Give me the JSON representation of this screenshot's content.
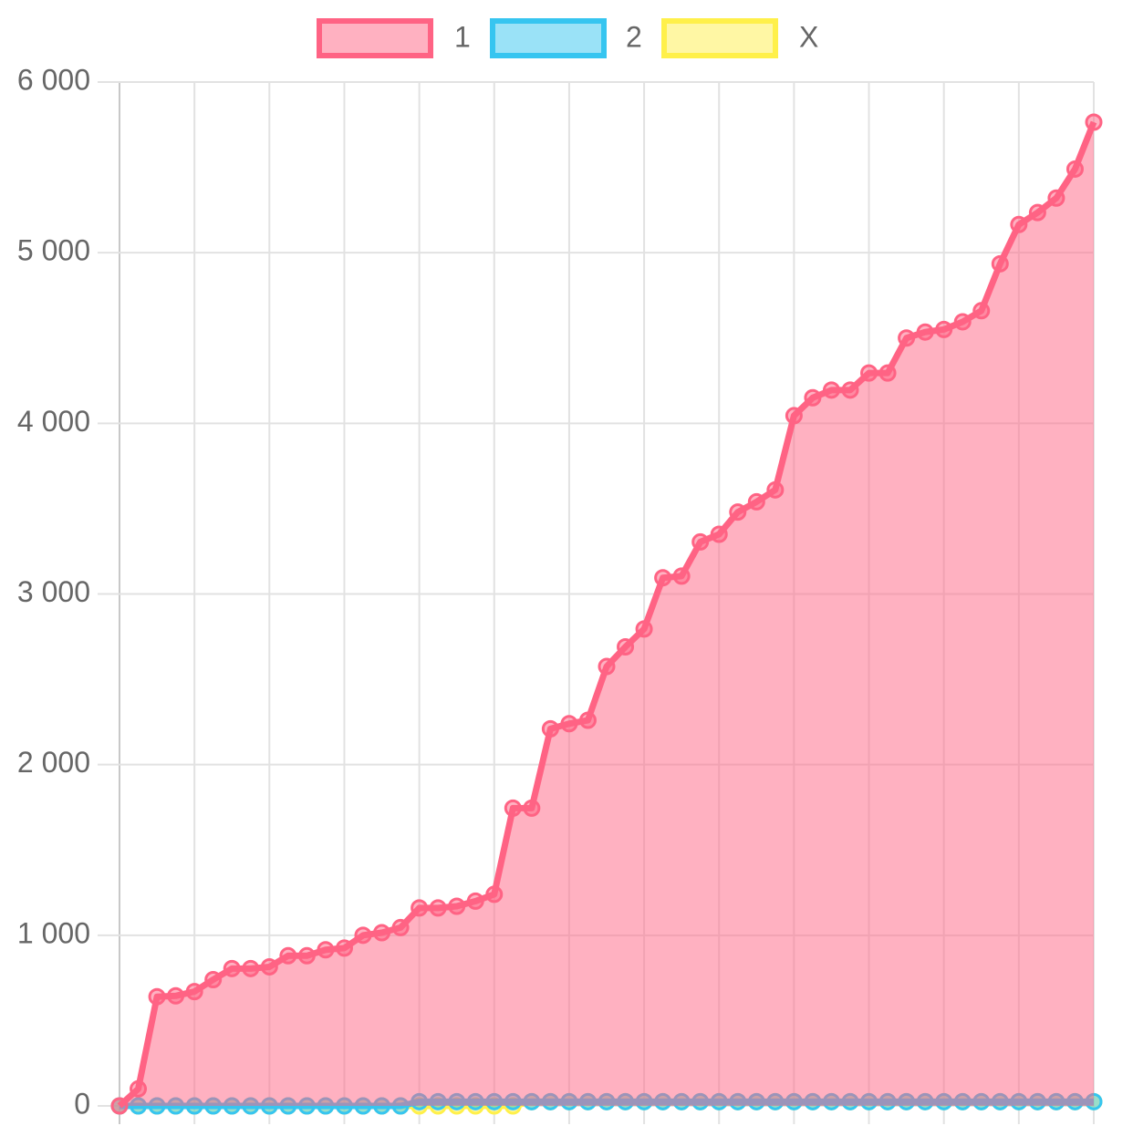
{
  "chart_data": {
    "type": "line",
    "categories": [
      null,
      null,
      null,
      null,
      null,
      null,
      null,
      null,
      null,
      null,
      null,
      null,
      null,
      null,
      null,
      null,
      null,
      null,
      null,
      null,
      null,
      null,
      null,
      null,
      null,
      null,
      null,
      null,
      null,
      null,
      null,
      null,
      null,
      null,
      null,
      null,
      null,
      null,
      null,
      null,
      null,
      null,
      null,
      null,
      null,
      null,
      null,
      null,
      null,
      null,
      null,
      null,
      null
    ],
    "series": [
      {
        "name": "1",
        "color": "#ff6384",
        "values": [
          0,
          100,
          640,
          645,
          670,
          740,
          805,
          805,
          815,
          880,
          880,
          915,
          925,
          1000,
          1015,
          1045,
          1160,
          1160,
          1170,
          1200,
          1240,
          1745,
          1745,
          2210,
          2240,
          2260,
          2575,
          2690,
          2795,
          3095,
          3105,
          3305,
          3350,
          3480,
          3540,
          3610,
          4045,
          4150,
          4195,
          4195,
          4295,
          4295,
          4500,
          4535,
          4550,
          4595,
          4660,
          4935,
          5165,
          5235,
          5320,
          5490,
          5765
        ]
      },
      {
        "name": "2",
        "color": "#36c5f0",
        "values": [
          0,
          0,
          0,
          0,
          0,
          0,
          0,
          0,
          0,
          0,
          0,
          0,
          0,
          0,
          0,
          0,
          25,
          25,
          25,
          25,
          25,
          25,
          25,
          25,
          25,
          25,
          25,
          25,
          25,
          25,
          25,
          25,
          25,
          25,
          25,
          25,
          25,
          25,
          25,
          25,
          25,
          25,
          25,
          25,
          25,
          25,
          25,
          25,
          25,
          25,
          25,
          25,
          25
        ]
      },
      {
        "name": "X",
        "color": "#fff04a",
        "values": [
          0,
          0,
          0,
          0,
          0,
          0,
          0,
          0,
          0,
          0,
          0,
          0,
          0,
          0,
          0,
          0,
          0,
          0,
          0,
          0,
          0,
          0,
          25,
          25,
          25,
          25,
          25,
          25,
          25,
          25,
          25,
          25,
          25,
          25,
          25,
          25,
          25,
          25,
          25,
          25,
          25,
          25,
          25,
          25,
          25,
          25,
          25,
          25,
          25,
          25,
          25,
          25,
          25
        ]
      }
    ],
    "ylim": [
      0,
      6000
    ],
    "yticks": [
      0,
      {
        "value": 1000,
        "label": "1 000"
      },
      {
        "value": 2000,
        "label": "2 000"
      },
      {
        "value": 3000,
        "label": "3 000"
      },
      {
        "value": 4000,
        "label": "4 000"
      },
      {
        "value": 5000,
        "label": "5 000"
      },
      {
        "value": 6000,
        "label": "6 000"
      }
    ],
    "grid": true,
    "fill": true,
    "legend": "top"
  }
}
